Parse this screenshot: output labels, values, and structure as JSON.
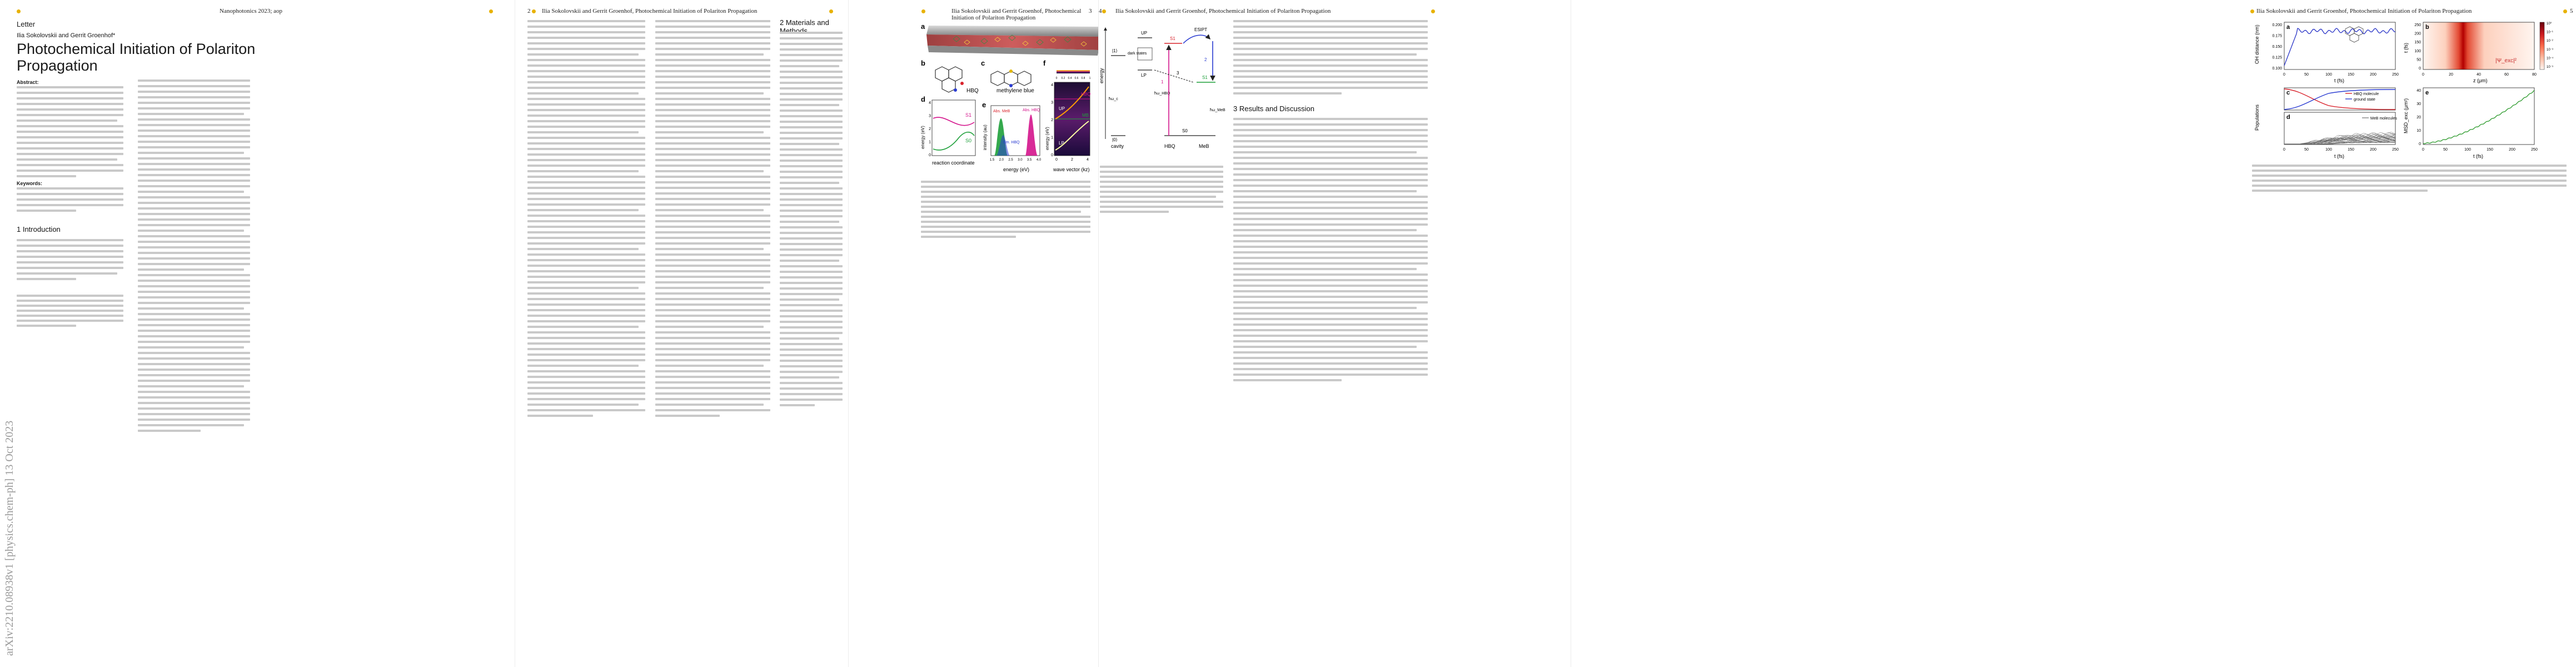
{
  "arxiv_stamp": "arXiv:2210.08938v1  [physics.chem-ph]  13 Oct 2023",
  "page1": {
    "journal": "Nanophotonics 2023; aop",
    "type": "Letter",
    "authors": "Ilia Sokolovskii and Gerrit Groenhof*",
    "title_line1": "Photochemical Initiation of Polariton",
    "title_line2": "Propagation",
    "abstract_label": "Abstract:",
    "keywords_label": "Keywords:",
    "section1": "1  Introduction"
  },
  "page2": {
    "page_number": "2",
    "running_head": "Ilia Sokolovskii and Gerrit Groenhof, Photochemical Initiation of Polariton Propagation",
    "section2": "2  Materials and Methods"
  },
  "page3": {
    "page_number": "3",
    "running_head": "Ilia Sokolovskii and Gerrit Groenhof, Photochemical Initiation of Polariton Propagation",
    "panel_labels": [
      "a",
      "b",
      "c",
      "d",
      "e",
      "f"
    ],
    "molecule_hbq": "HBQ",
    "molecule_mb": "methylene blue",
    "d_ylabel": "energy (eV)",
    "d_xlabel": "reaction coordinate",
    "d_s1": "S1",
    "d_s0": "S0",
    "e_ylabel": "intensity (au)",
    "e_xlabel": "energy (eV)",
    "e_abs_meb": "Abs. MeB",
    "e_abs_hbq": "Abs. HBQ",
    "e_em_hbq": "Em. HBQ",
    "f_xlabel": "wave vector (kz)",
    "f_ylabel": "energy (eV)",
    "f_hbq": "HBQ",
    "f_mb": "MB",
    "f_up": "UP",
    "f_lp": "LP",
    "f_colorbar_ticks": [
      "0",
      "0.2",
      "0.4",
      "0.6",
      "0.8",
      "1"
    ],
    "d_ticks": [
      "0",
      "1",
      "2",
      "3",
      "4"
    ],
    "e_ticks": [
      "1.5",
      "2.0",
      "2.5",
      "3.0",
      "3.5",
      "4.0"
    ],
    "f_yticks": [
      "0",
      "1",
      "2",
      "3",
      "4"
    ],
    "f_xticks": [
      "0",
      "2",
      "4"
    ]
  },
  "page4": {
    "page_number": "4",
    "running_head": "Ilia Sokolovskii and Gerrit Groenhof, Photochemical Initiation of Polariton Propagation",
    "diagram": {
      "energy": "energy",
      "cavity": "cavity",
      "hbq": "HBQ",
      "meb": "MeB",
      "dark_states": "dark states",
      "up": "UP",
      "lp": "LP",
      "s1": "S1",
      "s0": "S0",
      "esipt": "ESIPT",
      "hw_c": "ħω_c",
      "hw_hbq": "ħω_HBQ",
      "hw_meb": "ħω_MeB",
      "one": "|1⟩",
      "zero": "|0⟩",
      "step1": "1",
      "step2": "2",
      "step3": "3"
    },
    "section3": "3  Results and Discussion"
  },
  "page5": {
    "page_number": "5",
    "running_head": "Ilia Sokolovskii and Gerrit Groenhof, Photochemical Initiation of Polariton Propagation",
    "panel_a": {
      "label": "a",
      "ylabel": "OH distance (nm)",
      "xlabel": "t (fs)",
      "yticks": [
        "0.100",
        "0.125",
        "0.150",
        "0.175",
        "0.200"
      ],
      "xticks": [
        "0",
        "50",
        "100",
        "150",
        "200",
        "250"
      ]
    },
    "panel_b": {
      "label": "b",
      "ylabel": "t (fs)",
      "xlabel": "z (μm)",
      "colorbar_label": "|Ψ_exc|²",
      "yticks": [
        "0",
        "50",
        "100",
        "150",
        "200",
        "250"
      ],
      "xticks": [
        "0",
        "20",
        "40",
        "60",
        "80"
      ],
      "cbar_ticks": [
        "10⁰",
        "10⁻¹",
        "10⁻²",
        "10⁻³",
        "10⁻⁴",
        "10⁻⁵"
      ]
    },
    "panel_c": {
      "label": "c",
      "legend1": "HBQ molecule",
      "legend2": "ground state",
      "ylabel": "Populations"
    },
    "panel_d": {
      "label": "d",
      "legend": "MeB molecules",
      "xlabel": "t (fs)",
      "xticks": [
        "0",
        "50",
        "100",
        "150",
        "200",
        "250"
      ]
    },
    "panel_e": {
      "label": "e",
      "ylabel": "MSD_exc (μm²)",
      "xlabel": "t (fs)",
      "yticks": [
        "0",
        "10",
        "20",
        "30",
        "40"
      ],
      "xticks": [
        "0",
        "50",
        "100",
        "150",
        "200",
        "250"
      ]
    }
  },
  "colors": {
    "accent_dot": "#e8b200",
    "hbq_line": "#d9232c",
    "ground_line": "#2a3bd1",
    "msd_line": "#2e9b2e",
    "oh_line": "#2a35c7",
    "hbq_magenta": "#d4148c",
    "meb_green": "#1ea03a",
    "mirror_red": "#b52a2a"
  }
}
